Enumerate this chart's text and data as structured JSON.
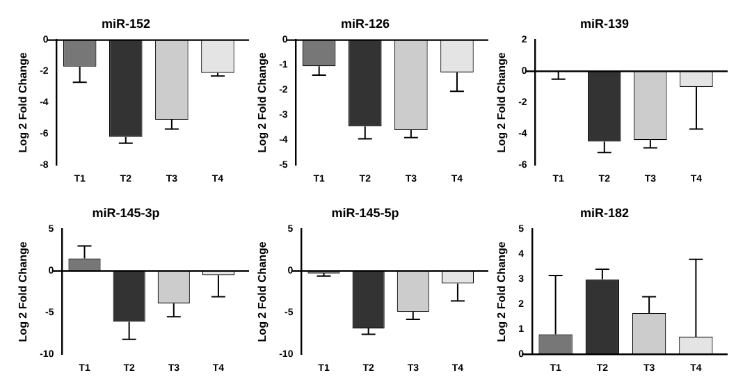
{
  "chart_data": [
    {
      "type": "bar",
      "title": "miR-152",
      "ylabel": "Log 2 Fold Change",
      "categories": [
        "T1",
        "T2",
        "T3",
        "T4"
      ],
      "values": [
        -1.7,
        -6.2,
        -5.1,
        -2.1
      ],
      "errors": [
        [
          -2.7,
          -1.7
        ],
        [
          -6.6,
          -6.2
        ],
        [
          -5.7,
          -5.1
        ],
        [
          -2.3,
          -2.1
        ]
      ],
      "colors": [
        "#777777",
        "#333333",
        "#cccccc",
        "#e4e4e4"
      ],
      "ylim": [
        -8,
        0
      ],
      "yticks": [
        -8,
        -6,
        -4,
        -2,
        0
      ],
      "legend": false
    },
    {
      "type": "bar",
      "title": "miR-126",
      "ylabel": "Log 2 Fold Change",
      "categories": [
        "T1",
        "T2",
        "T3",
        "T4"
      ],
      "values": [
        -1.05,
        -3.45,
        -3.6,
        -1.3
      ],
      "errors": [
        [
          -1.4,
          -1.05
        ],
        [
          -3.95,
          -3.45
        ],
        [
          -3.9,
          -3.6
        ],
        [
          -2.05,
          -1.3
        ]
      ],
      "colors": [
        "#777777",
        "#333333",
        "#cccccc",
        "#e4e4e4"
      ],
      "ylim": [
        -5,
        0
      ],
      "yticks": [
        -5,
        -4,
        -3,
        -2,
        -1,
        0
      ],
      "legend": false
    },
    {
      "type": "bar",
      "title": "miR-139",
      "ylabel": "Log 2 Fold Change",
      "categories": [
        "T1",
        "T2",
        "T3",
        "T4"
      ],
      "values": [
        0,
        -4.5,
        -4.4,
        -1.0
      ],
      "errors": [
        [
          -0.5,
          0
        ],
        [
          -5.2,
          -4.5
        ],
        [
          -4.9,
          -4.4
        ],
        [
          -3.7,
          -1.0
        ]
      ],
      "colors": [
        "#777777",
        "#333333",
        "#cccccc",
        "#e4e4e4"
      ],
      "ylim": [
        -6,
        2
      ],
      "yticks": [
        -6,
        -4,
        -2,
        0,
        2
      ],
      "legend": false
    },
    {
      "type": "bar",
      "title": "miR-145-3p",
      "ylabel": "Log 2 Fold Change",
      "categories": [
        "T1",
        "T2",
        "T3",
        "T4"
      ],
      "values": [
        1.5,
        -6.1,
        -3.9,
        -0.5
      ],
      "errors": [
        [
          1.5,
          3.0
        ],
        [
          -8.2,
          -6.1
        ],
        [
          -5.5,
          -3.9
        ],
        [
          -3.1,
          -0.5
        ]
      ],
      "colors": [
        "#777777",
        "#333333",
        "#cccccc",
        "#e4e4e4"
      ],
      "ylim": [
        -10,
        5
      ],
      "yticks": [
        -10,
        -5,
        0,
        5
      ],
      "legend": false
    },
    {
      "type": "bar",
      "title": "miR-145-5p",
      "ylabel": "Log 2 Fold Change",
      "categories": [
        "T1",
        "T2",
        "T3",
        "T4"
      ],
      "values": [
        -0.3,
        -6.9,
        -4.9,
        -1.5
      ],
      "errors": [
        [
          -0.6,
          -0.3
        ],
        [
          -7.6,
          -6.9
        ],
        [
          -5.8,
          -4.9
        ],
        [
          -3.6,
          -1.5
        ]
      ],
      "colors": [
        "#777777",
        "#333333",
        "#cccccc",
        "#e4e4e4"
      ],
      "ylim": [
        -10,
        5
      ],
      "yticks": [
        -10,
        -5,
        0,
        5
      ],
      "legend": false
    },
    {
      "type": "bar",
      "title": "miR-182",
      "ylabel": "Log 2 Fold Change",
      "categories": [
        "T1",
        "T2",
        "T3",
        "T4"
      ],
      "values": [
        0.8,
        3.0,
        1.65,
        0.7
      ],
      "errors": [
        [
          0.8,
          3.15
        ],
        [
          3.0,
          3.4
        ],
        [
          1.65,
          2.3
        ],
        [
          0.7,
          3.8
        ]
      ],
      "colors": [
        "#777777",
        "#333333",
        "#cccccc",
        "#e4e4e4"
      ],
      "ylim": [
        0,
        5
      ],
      "yticks": [
        0,
        1,
        2,
        3,
        4,
        5
      ],
      "legend": false
    }
  ]
}
